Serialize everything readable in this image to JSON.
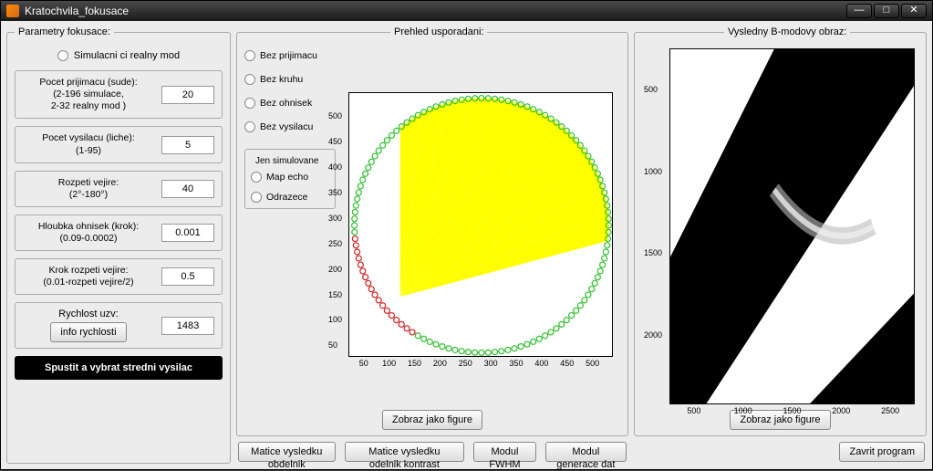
{
  "window": {
    "title": "Kratochvila_fokusace"
  },
  "left": {
    "legend": "Parametry fokusace:",
    "mode_label": "Simulacni ci realny mod",
    "params": [
      {
        "label": "Pocet prijimacu (sude):\n(2-196 simulace,\n2-32 realny mod )",
        "value": "20"
      },
      {
        "label": "Pocet vysilacu (liche):\n(1-95)",
        "value": "5"
      },
      {
        "label": "Rozpeti vejire:\n(2°-180°)",
        "value": "40"
      },
      {
        "label": "Hloubka ohnisek (krok):\n(0.09-0.0002)",
        "value": "0.001"
      },
      {
        "label": "Krok rozpeti vejire:\n(0.01-rozpeti vejire/2)",
        "value": "0.5"
      }
    ],
    "speed": {
      "label": "Rychlost uzv:",
      "button": "info rychlosti",
      "value": "1483"
    },
    "run_button": "Spustit a vybrat stredni vysilac"
  },
  "mid": {
    "legend": "Prehled usporadani:",
    "radios": [
      "Bez prijimacu",
      "Bez kruhu",
      "Bez ohnisek",
      "Bez vysilacu"
    ],
    "sim_legend": "Jen simulovane",
    "sim_radios": [
      "Map echo",
      "Odrazece"
    ],
    "fig_button": "Zobraz jako figure",
    "plot": {
      "xticks": [
        50,
        100,
        150,
        200,
        250,
        300,
        350,
        400,
        450,
        500
      ],
      "yticks": [
        50,
        100,
        150,
        200,
        250,
        300,
        350,
        400,
        450,
        500
      ],
      "xrange": [
        20,
        540
      ],
      "yrange": [
        20,
        540
      ],
      "ring_center": [
        280,
        280
      ],
      "ring_radius": 250,
      "fan_color": "#ffff00",
      "ring_green": "#2fbf2f",
      "ring_red": "#d02020",
      "fan_apex": [
        120,
        140
      ],
      "fan_a1": 15,
      "fan_a2": 90
    }
  },
  "right": {
    "legend": "Vysledny B-modovy obraz:",
    "fig_button": "Zobraz jako figure",
    "yticks": [
      500,
      1000,
      1500,
      2000
    ],
    "xticks": [
      500,
      1000,
      1500,
      2000,
      2500
    ]
  },
  "bottom": {
    "b1": "Matice vysledku obdelnik",
    "b2": "Matice vysledku odelnik kontrast",
    "b3": "Modul FWHM",
    "b4": "Modul generace dat",
    "close": "Zavrit program"
  }
}
